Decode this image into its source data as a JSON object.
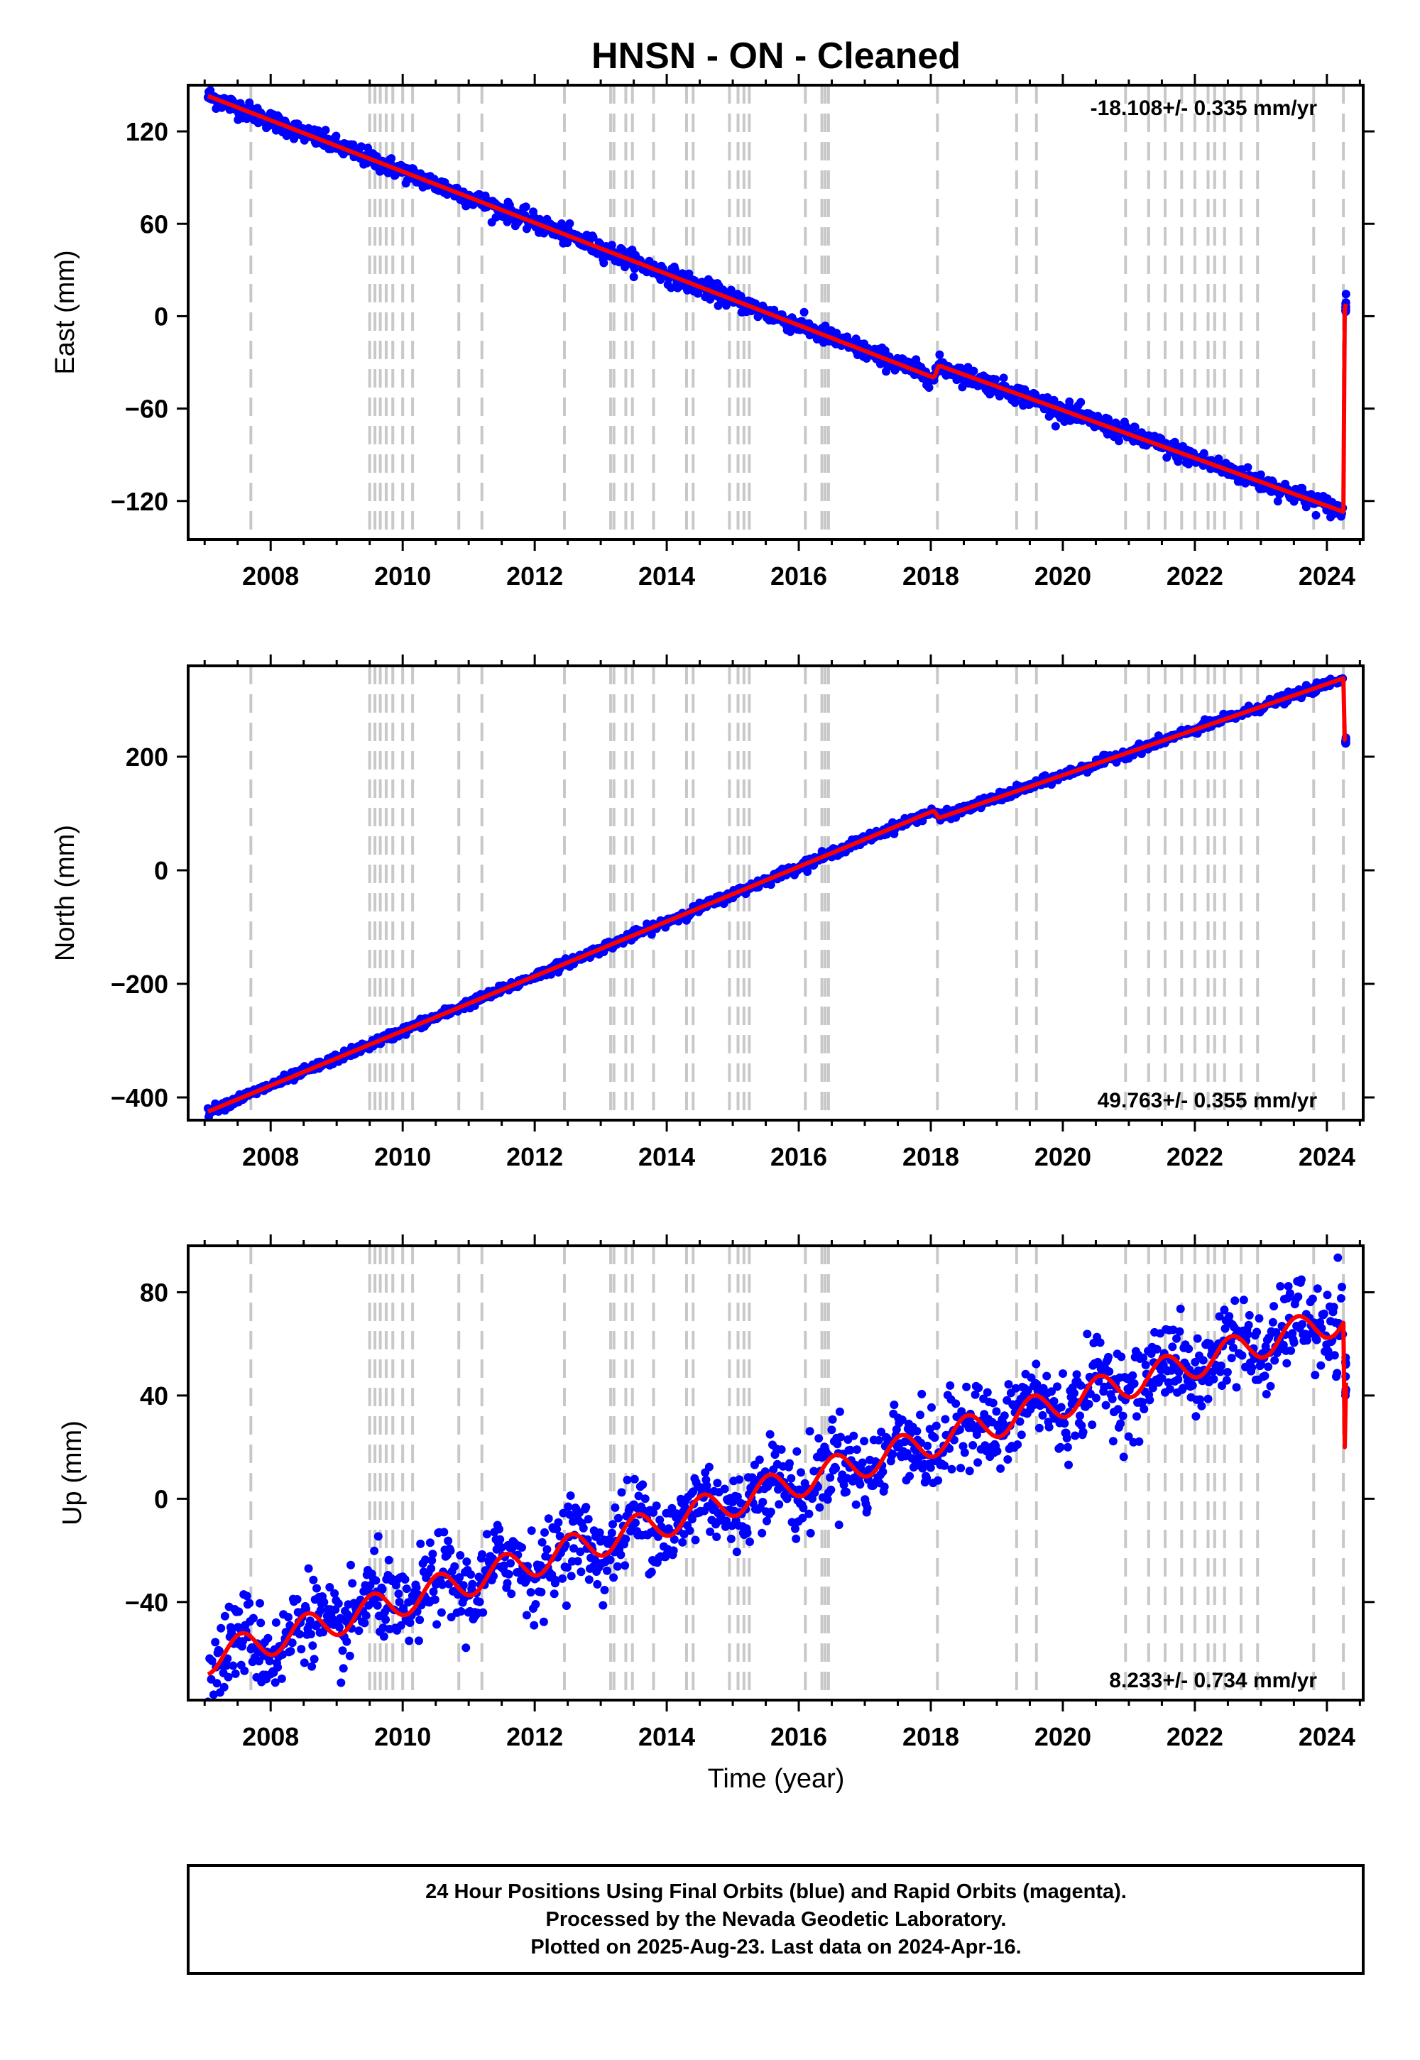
{
  "title": "HNSN  - ON - Cleaned",
  "xlabel": "Time (year)",
  "footer": {
    "line1": "24 Hour Positions Using Final Orbits (blue) and Rapid Orbits (magenta).",
    "line2": "Processed by the Nevada Geodetic Laboratory.",
    "line3": "Plotted on 2025-Aug-23. Last data on 2024-Apr-16."
  },
  "colors": {
    "points": "#0000ff",
    "model": "#ff0000",
    "event_lines": "#c8c8c8",
    "frame": "#000000"
  },
  "chart_data": [
    {
      "type": "scatter",
      "ylabel": "East (mm)",
      "rate_label": "-18.108+/- 0.335 mm/yr",
      "xlim": [
        2006.75,
        2024.55
      ],
      "ylim": [
        -145,
        150
      ],
      "xticks": [
        2008,
        2010,
        2012,
        2014,
        2016,
        2018,
        2020,
        2022,
        2024
      ],
      "yticks": [
        -120,
        -60,
        0,
        60,
        120
      ],
      "grid": false,
      "series": [
        {
          "role": "daily_positions",
          "x_range": [
            2007.05,
            2024.29
          ],
          "start": 141,
          "end": -127,
          "scatter_sd": 3
        },
        {
          "role": "model_fit",
          "points": [
            [
              2007.05,
              143
            ],
            [
              2018.05,
              -40
            ],
            [
              2018.12,
              -32
            ],
            [
              2024.25,
              -127
            ],
            [
              2024.27,
              5
            ],
            [
              2024.29,
              8
            ]
          ]
        }
      ]
    },
    {
      "type": "scatter",
      "ylabel": "North (mm)",
      "rate_label": "49.763+/- 0.355 mm/yr",
      "xlim": [
        2006.75,
        2024.55
      ],
      "ylim": [
        -440,
        360
      ],
      "xticks": [
        2008,
        2010,
        2012,
        2014,
        2016,
        2018,
        2020,
        2022,
        2024
      ],
      "yticks": [
        -400,
        -200,
        0,
        200
      ],
      "grid": false,
      "series": [
        {
          "role": "daily_positions",
          "x_range": [
            2007.05,
            2024.29
          ],
          "start": -425,
          "end": 338,
          "scatter_sd": 4
        },
        {
          "role": "model_fit",
          "points": [
            [
              2007.05,
              -425
            ],
            [
              2018.05,
              105
            ],
            [
              2018.12,
              92
            ],
            [
              2024.25,
              338
            ],
            [
              2024.27,
              230
            ],
            [
              2024.29,
              228
            ]
          ]
        }
      ]
    },
    {
      "type": "scatter",
      "ylabel": "Up (mm)",
      "rate_label": "8.233+/- 0.734 mm/yr",
      "xlim": [
        2006.75,
        2024.55
      ],
      "ylim": [
        -78,
        98
      ],
      "xticks": [
        2008,
        2010,
        2012,
        2014,
        2016,
        2018,
        2020,
        2022,
        2024
      ],
      "yticks": [
        -40,
        0,
        40,
        80
      ],
      "grid": false,
      "series": [
        {
          "role": "daily_positions",
          "x_range": [
            2007.05,
            2024.29
          ],
          "start": -60,
          "end": 72,
          "scatter_sd": 8,
          "seasonal_amplitude": 6
        },
        {
          "role": "model_fit",
          "points": [
            [
              2007.05,
              -62
            ],
            [
              2024.25,
              70
            ],
            [
              2024.27,
              20
            ],
            [
              2024.29,
              45
            ]
          ]
        }
      ]
    }
  ],
  "event_lines": [
    2007.7,
    2009.5,
    2009.58,
    2009.66,
    2009.75,
    2009.85,
    2010.0,
    2010.15,
    2010.85,
    2011.2,
    2012.45,
    2013.15,
    2013.2,
    2013.38,
    2013.48,
    2013.8,
    2014.3,
    2014.4,
    2014.95,
    2015.08,
    2015.17,
    2015.25,
    2016.1,
    2016.35,
    2016.4,
    2016.45,
    2018.1,
    2019.3,
    2019.6,
    2020.95,
    2021.3,
    2021.55,
    2021.8,
    2022.0,
    2022.2,
    2022.3,
    2022.45,
    2022.7,
    2022.95,
    2023.8,
    2024.25
  ]
}
